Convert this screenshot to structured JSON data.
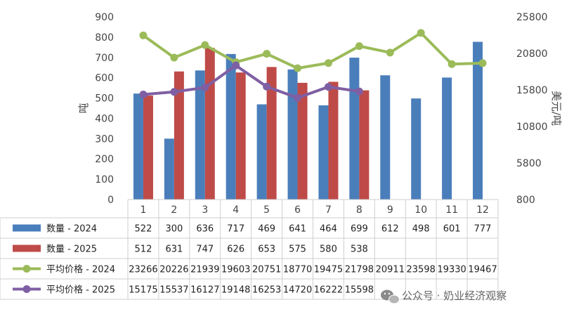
{
  "chart_data": {
    "type": "bar",
    "categories": [
      "1",
      "2",
      "3",
      "4",
      "5",
      "6",
      "7",
      "8",
      "9",
      "10",
      "11",
      "12"
    ],
    "y_left": {
      "label": "吨",
      "range": [
        0,
        900
      ],
      "ticks": [
        "0",
        "100",
        "200",
        "300",
        "400",
        "500",
        "600",
        "700",
        "800",
        "900"
      ]
    },
    "y_right": {
      "label": "美元/吨",
      "range": [
        800,
        25800
      ],
      "ticks": [
        "800",
        "5800",
        "10800",
        "15800",
        "20800",
        "25800"
      ]
    },
    "grid": false,
    "legend_placement": "table-below",
    "series": [
      {
        "name": "数量 - 2024",
        "kind": "bar",
        "axis": "left",
        "color": "#4a7ebb",
        "values": [
          522,
          300,
          636,
          717,
          469,
          641,
          464,
          699,
          612,
          498,
          601,
          777
        ]
      },
      {
        "name": "数量 - 2025",
        "kind": "bar",
        "axis": "left",
        "color": "#be4b48",
        "values": [
          512,
          631,
          747,
          626,
          653,
          575,
          580,
          538,
          null,
          null,
          null,
          null
        ]
      },
      {
        "name": "平均价格 - 2024",
        "kind": "line",
        "axis": "right",
        "color": "#9bbb59",
        "values": [
          23266,
          20226,
          21939,
          19603,
          20751,
          18770,
          19475,
          21798,
          20911,
          23598,
          19330,
          19467
        ]
      },
      {
        "name": "平均价格 - 2025",
        "kind": "line",
        "axis": "right",
        "color": "#7f5fa3",
        "values": [
          15175,
          15537,
          16127,
          19148,
          16253,
          14720,
          16222,
          15598,
          null,
          null,
          null,
          null
        ]
      }
    ]
  },
  "watermark": {
    "icon": "wechat-icon",
    "text": "公众号 · 奶业经济观察"
  }
}
